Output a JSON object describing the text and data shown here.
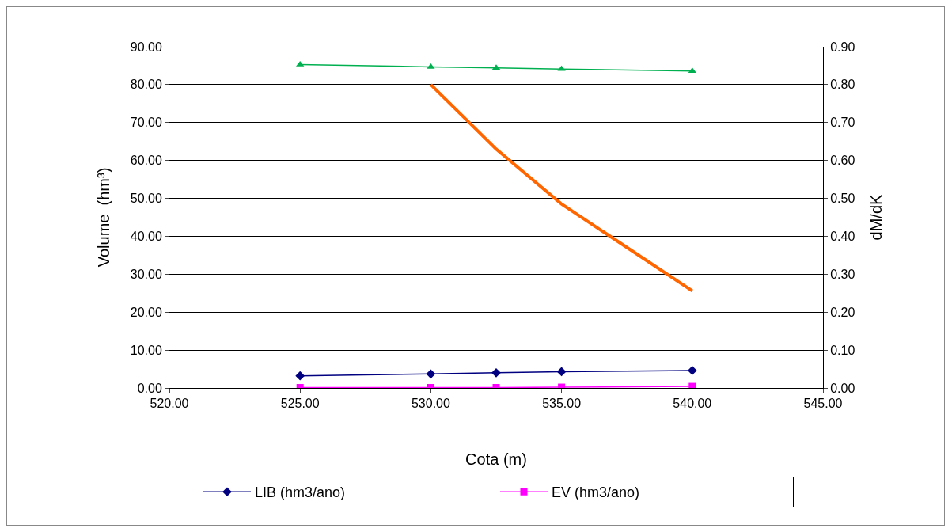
{
  "chart_data": {
    "type": "line",
    "xlabel": "Cota (m)",
    "ylabel": "Volume  (hm³)",
    "y2label": "dM/dK",
    "xlim": [
      520,
      545
    ],
    "xticks": [
      {
        "value": 520,
        "label": "520.00"
      },
      {
        "value": 525,
        "label": "525.00"
      },
      {
        "value": 530,
        "label": "530.00"
      },
      {
        "value": 535,
        "label": "535.00"
      },
      {
        "value": 540,
        "label": "540.00"
      },
      {
        "value": 545,
        "label": "545.00"
      }
    ],
    "ylim": [
      0,
      90
    ],
    "yticks": [
      {
        "value": 0,
        "label": "0.00"
      },
      {
        "value": 10,
        "label": "10.00"
      },
      {
        "value": 20,
        "label": "20.00"
      },
      {
        "value": 30,
        "label": "30.00"
      },
      {
        "value": 40,
        "label": "40.00"
      },
      {
        "value": 50,
        "label": "50.00"
      },
      {
        "value": 60,
        "label": "60.00"
      },
      {
        "value": 70,
        "label": "70.00"
      },
      {
        "value": 80,
        "label": "80.00"
      },
      {
        "value": 90,
        "label": "90.00"
      }
    ],
    "y2lim": [
      0,
      0.9
    ],
    "y2ticks": [
      {
        "value": 0,
        "label": "0.00"
      },
      {
        "value": 0.1,
        "label": "0.10"
      },
      {
        "value": 0.2,
        "label": "0.20"
      },
      {
        "value": 0.3,
        "label": "0.30"
      },
      {
        "value": 0.4,
        "label": "0.40"
      },
      {
        "value": 0.5,
        "label": "0.50"
      },
      {
        "value": 0.6,
        "label": "0.60"
      },
      {
        "value": 0.7,
        "label": "0.70"
      },
      {
        "value": 0.8,
        "label": "0.80"
      },
      {
        "value": 0.9,
        "label": "0.90"
      }
    ],
    "grid": "y",
    "legend": "bottom",
    "line_style": "solid",
    "x": [
      525,
      530,
      532.5,
      535,
      540
    ],
    "series": [
      {
        "name": "LIB (hm3/ano)",
        "color": "#000080",
        "marker": "diamond",
        "values": [
          3.2,
          3.7,
          4.0,
          4.3,
          4.6
        ]
      },
      {
        "name": "EV (hm3/ano)",
        "color": "#ff00ff",
        "marker": "square",
        "values": [
          0.1,
          0.1,
          0.1,
          0.2,
          0.4
        ]
      },
      {
        "color": "#00b050",
        "marker": "triangle",
        "values": [
          85.3,
          84.7,
          84.4,
          84.1,
          83.6
        ]
      },
      {
        "color": "#ff6600",
        "marker": "none",
        "axis": "y2",
        "x": [
          530,
          532.5,
          535,
          540
        ],
        "values": [
          0.8,
          0.63,
          0.485,
          0.256
        ]
      }
    ]
  }
}
